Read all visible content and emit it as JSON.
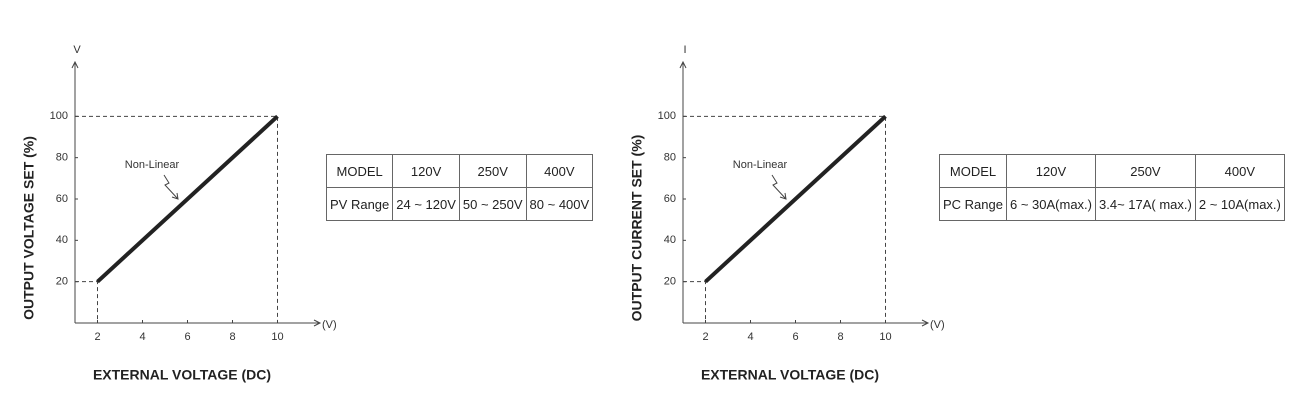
{
  "chart_data": [
    {
      "type": "line",
      "y_axis_symbol": "V",
      "x_axis_unit": "(V)",
      "ylabel": "OUTPUT VOLTAGE SET (%)",
      "xlabel": "EXTERNAL VOLTAGE (DC)",
      "annotation": "Non-Linear",
      "x": [
        2,
        10
      ],
      "values": [
        20,
        100
      ],
      "color": "#222222",
      "xlim": [
        1,
        11
      ],
      "xticks": [
        2,
        4,
        6,
        8,
        10
      ],
      "ylim": [
        0,
        120
      ],
      "yticks": [
        20,
        40,
        60,
        80,
        100
      ]
    },
    {
      "type": "line",
      "y_axis_symbol": "I",
      "x_axis_unit": "(V)",
      "ylabel": "OUTPUT CURRENT SET (%)",
      "xlabel": "EXTERNAL VOLTAGE (DC)",
      "annotation": "Non-Linear",
      "x": [
        2,
        10
      ],
      "values": [
        20,
        100
      ],
      "color": "#222222",
      "xlim": [
        1,
        11
      ],
      "xticks": [
        2,
        4,
        6,
        8,
        10
      ],
      "ylim": [
        0,
        120
      ],
      "yticks": [
        20,
        40,
        60,
        80,
        100
      ]
    }
  ],
  "tables": [
    {
      "rows": [
        [
          "MODEL",
          "120V",
          "250V",
          "400V"
        ],
        [
          "PV Range",
          "24 ~ 120V",
          "50 ~ 250V",
          "80 ~ 400V"
        ]
      ]
    },
    {
      "rows": [
        [
          "MODEL",
          "120V",
          "250V",
          "400V"
        ],
        [
          "PC Range",
          "6 ~ 30A(max.)",
          "3.4~ 17A( max.)",
          "2 ~ 10A(max.)"
        ]
      ]
    }
  ]
}
